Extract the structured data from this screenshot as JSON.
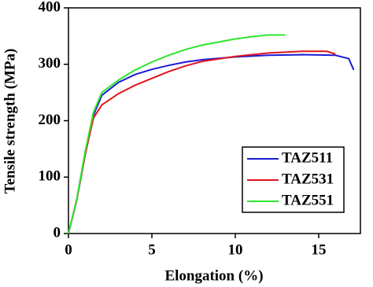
{
  "chart_data": {
    "type": "line",
    "xlabel": "Elongation (%)",
    "ylabel": "Tensile strength (MPa)",
    "xlim": [
      0,
      17.5
    ],
    "ylim": [
      0,
      400
    ],
    "xticks": [
      0,
      5,
      10,
      15
    ],
    "yticks": [
      0,
      100,
      200,
      300,
      400
    ],
    "legend": "lower right",
    "series": [
      {
        "name": "TAZ511",
        "color": "#1a1ad6",
        "x": [
          0,
          0.5,
          1,
          1.5,
          2,
          3,
          4,
          5,
          6,
          7,
          8,
          10,
          12,
          14,
          16,
          16.8,
          17.1
        ],
        "values": [
          0,
          60,
          140,
          210,
          245,
          268,
          282,
          291,
          298,
          304,
          308,
          313,
          316,
          317,
          316,
          310,
          290
        ]
      },
      {
        "name": "TAZ531",
        "color": "#e0141e",
        "x": [
          0,
          0.5,
          1,
          1.5,
          2,
          3,
          4,
          5,
          6,
          7,
          8,
          10,
          12,
          14,
          15.5,
          16
        ],
        "values": [
          0,
          60,
          140,
          205,
          228,
          248,
          263,
          275,
          287,
          297,
          305,
          314,
          320,
          323,
          323,
          318
        ]
      },
      {
        "name": "TAZ551",
        "color": "#2ee62e",
        "x": [
          0,
          0.5,
          1,
          1.5,
          2,
          3,
          4,
          5,
          6,
          7,
          8,
          10,
          11,
          12,
          13
        ],
        "values": [
          0,
          62,
          145,
          215,
          250,
          272,
          290,
          304,
          316,
          326,
          334,
          345,
          349,
          352,
          352
        ]
      }
    ]
  }
}
